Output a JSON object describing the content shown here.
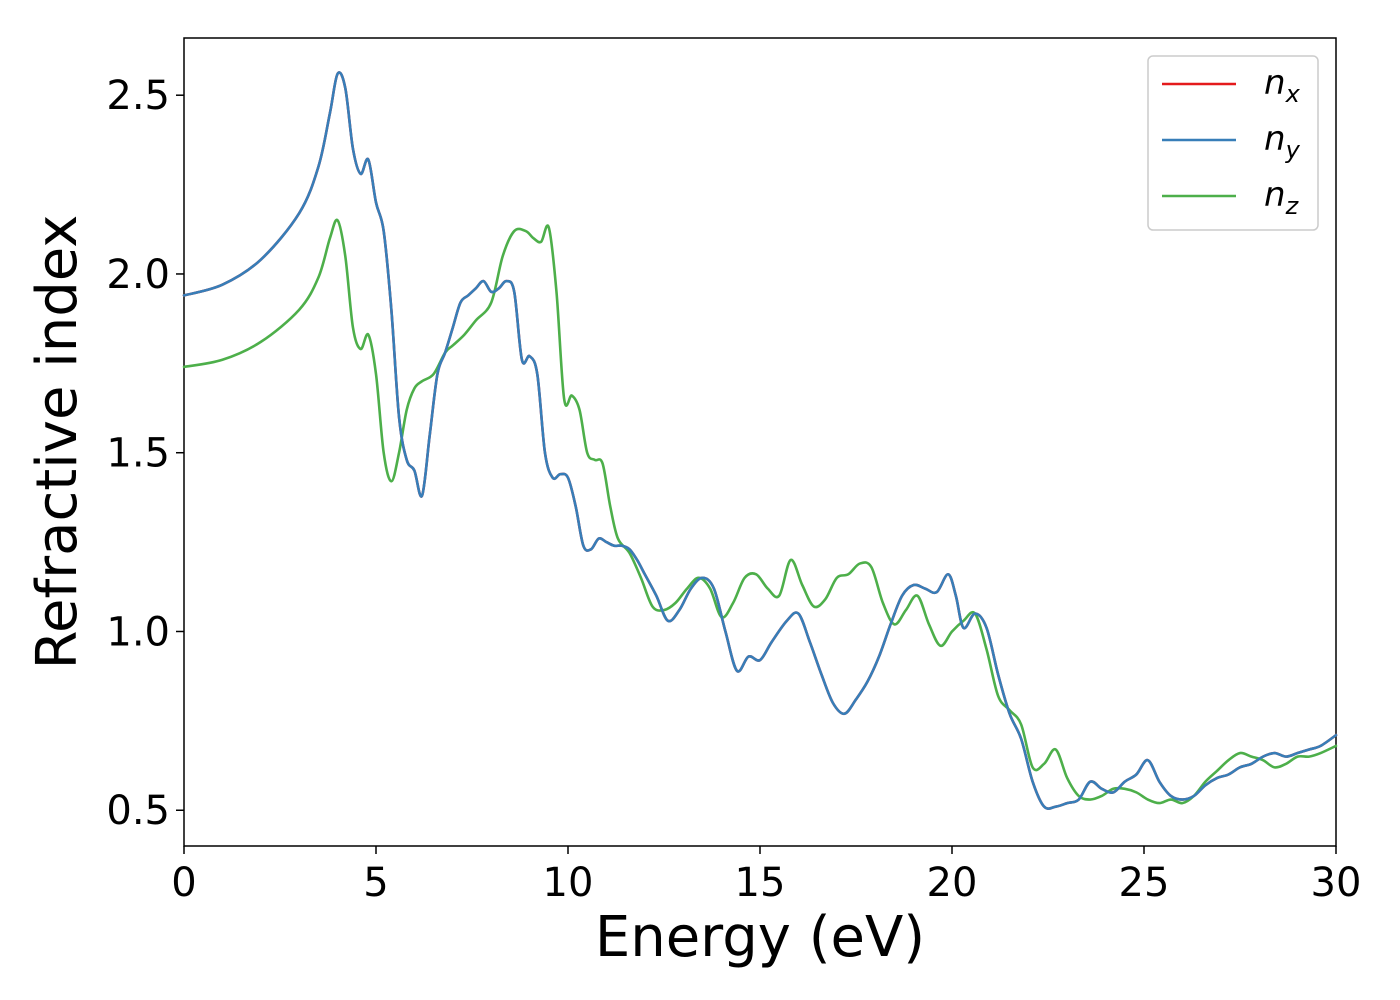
{
  "chart_data": {
    "type": "line",
    "xlabel": "Energy (eV)",
    "ylabel": "Refractive index",
    "xlim": [
      0,
      30
    ],
    "ylim": [
      0.4,
      2.66
    ],
    "xticks": [
      0,
      5,
      10,
      15,
      20,
      25,
      30
    ],
    "xtick_labels": [
      "0",
      "5",
      "10",
      "15",
      "20",
      "25",
      "30"
    ],
    "yticks": [
      0.5,
      1.0,
      1.5,
      2.0,
      2.5
    ],
    "ytick_labels": [
      "0.5",
      "1.0",
      "1.5",
      "2.0",
      "2.5"
    ],
    "grid": false,
    "legend_position": "top-right",
    "series": [
      {
        "name": "n",
        "sub": "x",
        "color": "#e41a1c",
        "x": [
          0,
          1,
          2,
          3,
          3.5,
          3.8,
          4.0,
          4.2,
          4.4,
          4.6,
          4.8,
          5.0,
          5.2,
          5.4,
          5.6,
          5.8,
          6.0,
          6.2,
          6.4,
          6.6,
          6.8,
          7.0,
          7.2,
          7.4,
          7.6,
          7.8,
          8.0,
          8.2,
          8.4,
          8.6,
          8.8,
          9.0,
          9.2,
          9.4,
          9.6,
          9.8,
          10.0,
          10.2,
          10.4,
          10.6,
          10.8,
          11.0,
          11.2,
          11.4,
          11.6,
          11.8,
          12.0,
          12.3,
          12.6,
          12.9,
          13.2,
          13.5,
          13.8,
          14.1,
          14.4,
          14.7,
          15.0,
          15.3,
          15.7,
          16.0,
          16.3,
          16.6,
          16.9,
          17.2,
          17.5,
          17.8,
          18.1,
          18.4,
          18.7,
          19.0,
          19.3,
          19.6,
          19.9,
          20.1,
          20.3,
          20.6,
          20.9,
          21.2,
          21.5,
          21.8,
          22.1,
          22.4,
          22.7,
          23.0,
          23.3,
          23.6,
          23.9,
          24.2,
          24.5,
          24.8,
          25.1,
          25.4,
          25.7,
          26.0,
          26.3,
          26.6,
          26.9,
          27.2,
          27.5,
          27.8,
          28.1,
          28.4,
          28.7,
          29.0,
          29.3,
          29.6,
          30.0
        ],
        "values": [
          1.94,
          1.97,
          2.04,
          2.17,
          2.3,
          2.45,
          2.56,
          2.52,
          2.35,
          2.28,
          2.32,
          2.2,
          2.12,
          1.9,
          1.6,
          1.48,
          1.45,
          1.38,
          1.55,
          1.72,
          1.78,
          1.85,
          1.92,
          1.94,
          1.96,
          1.98,
          1.95,
          1.96,
          1.98,
          1.95,
          1.76,
          1.77,
          1.72,
          1.5,
          1.43,
          1.44,
          1.43,
          1.35,
          1.24,
          1.23,
          1.26,
          1.25,
          1.24,
          1.24,
          1.23,
          1.2,
          1.16,
          1.1,
          1.03,
          1.06,
          1.12,
          1.15,
          1.12,
          1.0,
          0.89,
          0.93,
          0.92,
          0.97,
          1.03,
          1.05,
          0.97,
          0.88,
          0.8,
          0.77,
          0.81,
          0.86,
          0.93,
          1.02,
          1.1,
          1.13,
          1.12,
          1.11,
          1.16,
          1.1,
          1.01,
          1.05,
          1.01,
          0.88,
          0.77,
          0.7,
          0.58,
          0.51,
          0.51,
          0.52,
          0.53,
          0.58,
          0.56,
          0.55,
          0.58,
          0.6,
          0.64,
          0.58,
          0.54,
          0.53,
          0.54,
          0.57,
          0.59,
          0.6,
          0.62,
          0.63,
          0.65,
          0.66,
          0.65,
          0.66,
          0.67,
          0.68,
          0.71
        ]
      },
      {
        "name": "n",
        "sub": "y",
        "color": "#377eb8",
        "x": [
          0,
          1,
          2,
          3,
          3.5,
          3.8,
          4.0,
          4.2,
          4.4,
          4.6,
          4.8,
          5.0,
          5.2,
          5.4,
          5.6,
          5.8,
          6.0,
          6.2,
          6.4,
          6.6,
          6.8,
          7.0,
          7.2,
          7.4,
          7.6,
          7.8,
          8.0,
          8.2,
          8.4,
          8.6,
          8.8,
          9.0,
          9.2,
          9.4,
          9.6,
          9.8,
          10.0,
          10.2,
          10.4,
          10.6,
          10.8,
          11.0,
          11.2,
          11.4,
          11.6,
          11.8,
          12.0,
          12.3,
          12.6,
          12.9,
          13.2,
          13.5,
          13.8,
          14.1,
          14.4,
          14.7,
          15.0,
          15.3,
          15.7,
          16.0,
          16.3,
          16.6,
          16.9,
          17.2,
          17.5,
          17.8,
          18.1,
          18.4,
          18.7,
          19.0,
          19.3,
          19.6,
          19.9,
          20.1,
          20.3,
          20.6,
          20.9,
          21.2,
          21.5,
          21.8,
          22.1,
          22.4,
          22.7,
          23.0,
          23.3,
          23.6,
          23.9,
          24.2,
          24.5,
          24.8,
          25.1,
          25.4,
          25.7,
          26.0,
          26.3,
          26.6,
          26.9,
          27.2,
          27.5,
          27.8,
          28.1,
          28.4,
          28.7,
          29.0,
          29.3,
          29.6,
          30.0
        ],
        "values": [
          1.94,
          1.97,
          2.04,
          2.17,
          2.3,
          2.45,
          2.56,
          2.52,
          2.35,
          2.28,
          2.32,
          2.2,
          2.12,
          1.9,
          1.6,
          1.48,
          1.45,
          1.38,
          1.55,
          1.72,
          1.78,
          1.85,
          1.92,
          1.94,
          1.96,
          1.98,
          1.95,
          1.96,
          1.98,
          1.95,
          1.76,
          1.77,
          1.72,
          1.5,
          1.43,
          1.44,
          1.43,
          1.35,
          1.24,
          1.23,
          1.26,
          1.25,
          1.24,
          1.24,
          1.23,
          1.2,
          1.16,
          1.1,
          1.03,
          1.06,
          1.12,
          1.15,
          1.12,
          1.0,
          0.89,
          0.93,
          0.92,
          0.97,
          1.03,
          1.05,
          0.97,
          0.88,
          0.8,
          0.77,
          0.81,
          0.86,
          0.93,
          1.02,
          1.1,
          1.13,
          1.12,
          1.11,
          1.16,
          1.1,
          1.01,
          1.05,
          1.01,
          0.88,
          0.77,
          0.7,
          0.58,
          0.51,
          0.51,
          0.52,
          0.53,
          0.58,
          0.56,
          0.55,
          0.58,
          0.6,
          0.64,
          0.58,
          0.54,
          0.53,
          0.54,
          0.57,
          0.59,
          0.6,
          0.62,
          0.63,
          0.65,
          0.66,
          0.65,
          0.66,
          0.67,
          0.68,
          0.71
        ]
      },
      {
        "name": "n",
        "sub": "z",
        "color": "#4daf4a",
        "x": [
          0,
          1,
          2,
          3,
          3.5,
          3.8,
          4.0,
          4.2,
          4.4,
          4.6,
          4.8,
          5.0,
          5.2,
          5.4,
          5.6,
          5.8,
          6.0,
          6.2,
          6.5,
          6.8,
          7.0,
          7.3,
          7.6,
          8.0,
          8.3,
          8.6,
          8.9,
          9.1,
          9.3,
          9.5,
          9.7,
          9.9,
          10.1,
          10.3,
          10.5,
          10.7,
          10.9,
          11.1,
          11.3,
          11.6,
          11.9,
          12.2,
          12.5,
          12.8,
          13.1,
          13.4,
          13.7,
          14.0,
          14.3,
          14.6,
          14.9,
          15.2,
          15.5,
          15.8,
          16.1,
          16.4,
          16.7,
          17.0,
          17.3,
          17.6,
          17.9,
          18.2,
          18.5,
          18.8,
          19.1,
          19.4,
          19.7,
          20.0,
          20.3,
          20.6,
          20.9,
          21.2,
          21.5,
          21.8,
          22.1,
          22.4,
          22.7,
          23.0,
          23.3,
          23.6,
          23.9,
          24.2,
          24.5,
          24.8,
          25.1,
          25.4,
          25.7,
          26.0,
          26.3,
          26.6,
          26.9,
          27.2,
          27.5,
          27.8,
          28.1,
          28.4,
          28.7,
          29.0,
          29.3,
          29.6,
          30.0
        ],
        "values": [
          1.74,
          1.76,
          1.81,
          1.9,
          1.99,
          2.1,
          2.15,
          2.05,
          1.85,
          1.79,
          1.83,
          1.72,
          1.5,
          1.42,
          1.5,
          1.62,
          1.68,
          1.7,
          1.72,
          1.78,
          1.8,
          1.83,
          1.87,
          1.92,
          2.05,
          2.12,
          2.12,
          2.1,
          2.09,
          2.13,
          1.95,
          1.65,
          1.66,
          1.62,
          1.5,
          1.48,
          1.47,
          1.35,
          1.26,
          1.22,
          1.15,
          1.07,
          1.06,
          1.08,
          1.12,
          1.15,
          1.12,
          1.04,
          1.08,
          1.15,
          1.16,
          1.12,
          1.1,
          1.2,
          1.13,
          1.07,
          1.09,
          1.15,
          1.16,
          1.19,
          1.18,
          1.08,
          1.02,
          1.06,
          1.1,
          1.02,
          0.96,
          1.0,
          1.03,
          1.05,
          0.95,
          0.82,
          0.78,
          0.74,
          0.62,
          0.63,
          0.67,
          0.59,
          0.54,
          0.53,
          0.54,
          0.56,
          0.56,
          0.55,
          0.53,
          0.52,
          0.53,
          0.52,
          0.54,
          0.58,
          0.61,
          0.64,
          0.66,
          0.65,
          0.64,
          0.62,
          0.63,
          0.65,
          0.65,
          0.66,
          0.68
        ]
      }
    ]
  }
}
